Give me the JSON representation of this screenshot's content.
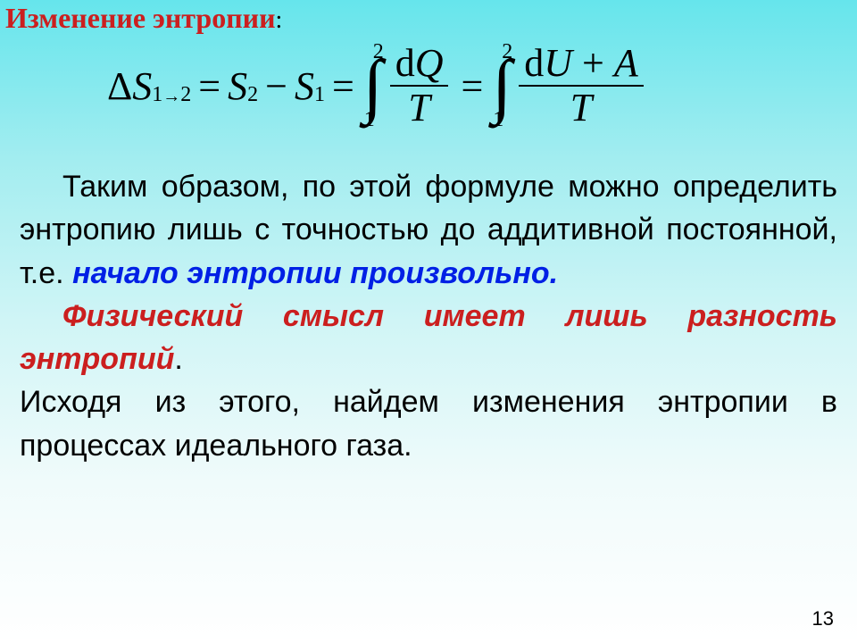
{
  "title": "Изменение энтропии",
  "title_colon": ":",
  "formula": {
    "deltaS": "Δ",
    "S": "S",
    "sub12_1": "1",
    "sub12_arrow": "→",
    "sub12_2": "2",
    "eq": "=",
    "minus": "−",
    "sub2": "2",
    "sub1": "1",
    "int_top": "2",
    "int_sym": "∫",
    "int_bot": "1",
    "dQ_d": "d",
    "dQ_Q": "Q",
    "T": "T",
    "dU_d": "d",
    "dU_U": "U",
    "plus": "+",
    "A": "A"
  },
  "para1_a": "Таким образом, по этой формуле можно определить энтропию лишь с точностью до аддитивной постоянной, т.е.  ",
  "para1_blue": "начало энтропии",
  "para1_spaces": "          ",
  "para1_c": "произвольно",
  "para1_dot": ".",
  "para2_a": "Физический смысл имеет лишь разность энтропий",
  "para2_dot": ".",
  "para3": "Исходя из этого, найдем изменения энтропии в процессах идеального газа.",
  "page_number": "13",
  "colors": {
    "title_red": "#cb1f1f",
    "link_blue": "#0020e5",
    "text_black": "#000000",
    "bg_top": "#66e5ec",
    "bg_bottom": "#ffffff"
  }
}
